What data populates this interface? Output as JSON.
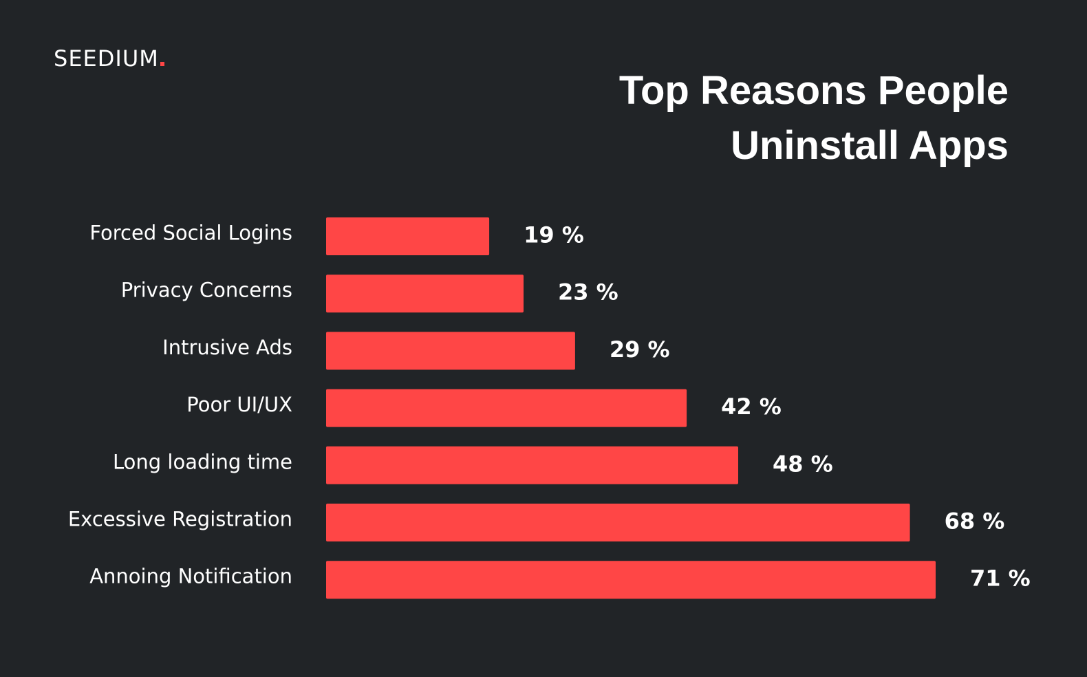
{
  "chart_data": {
    "type": "bar",
    "orientation": "horizontal",
    "brand": "SEEDIUM",
    "title": "Top Reasons People Uninstall Apps",
    "categories": [
      "Forced Social Logins",
      "Privacy Concerns",
      "Intrusive Ads",
      "Poor UI/UX",
      "Long loading time",
      "Excessive Registration",
      "Annoing Notification"
    ],
    "values": [
      19,
      23,
      29,
      42,
      48,
      68,
      71
    ],
    "value_labels": [
      "19 %",
      "23 %",
      "29 %",
      "42 %",
      "48 %",
      "68 %",
      "71 %"
    ],
    "color": "#ff4646"
  }
}
